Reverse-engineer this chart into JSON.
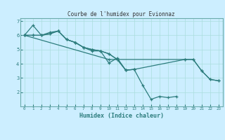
{
  "title": "Courbe de l'humidex pour Evionnaz",
  "xlabel": "Humidex (Indice chaleur)",
  "bg_color": "#cceeff",
  "line_color": "#2d7d7d",
  "grid_color": "#aadddd",
  "spine_color": "#6aabab",
  "xlim": [
    -0.5,
    23.5
  ],
  "ylim": [
    1.0,
    7.2
  ],
  "yticks": [
    2,
    3,
    4,
    5,
    6,
    7
  ],
  "xticks": [
    0,
    1,
    2,
    3,
    4,
    5,
    6,
    7,
    8,
    9,
    10,
    11,
    12,
    13,
    14,
    15,
    16,
    17,
    18,
    19,
    20,
    21,
    22,
    23
  ],
  "line1_x": [
    0,
    1,
    2,
    3,
    4,
    5,
    6,
    7,
    8,
    9,
    10,
    11,
    12,
    13,
    14,
    15,
    16,
    17,
    18
  ],
  "line1_y": [
    6.0,
    6.7,
    6.0,
    6.2,
    6.3,
    5.7,
    5.5,
    5.15,
    4.9,
    4.9,
    4.05,
    4.4,
    3.55,
    3.6,
    2.5,
    1.5,
    1.7,
    1.62,
    1.7
  ],
  "line2_x": [
    0,
    1,
    2,
    3,
    4,
    5,
    6,
    7,
    8,
    9,
    10,
    11,
    12,
    13
  ],
  "line2_y": [
    6.0,
    6.0,
    6.0,
    6.1,
    6.3,
    5.7,
    5.5,
    5.15,
    5.0,
    4.9,
    4.7,
    4.3,
    3.55,
    3.6
  ],
  "line3_x": [
    0,
    1,
    2,
    3,
    4,
    5,
    6,
    7,
    8,
    9,
    10,
    11,
    12,
    13,
    19,
    20,
    21,
    22,
    23
  ],
  "line3_y": [
    6.0,
    6.0,
    6.0,
    6.1,
    6.3,
    5.7,
    5.5,
    5.15,
    5.0,
    4.9,
    4.7,
    4.3,
    3.55,
    3.6,
    4.3,
    4.3,
    3.5,
    2.9,
    2.8
  ],
  "line4_x": [
    0,
    10,
    19,
    20,
    21,
    22,
    23
  ],
  "line4_y": [
    6.0,
    4.3,
    4.3,
    4.3,
    3.5,
    2.9,
    2.8
  ]
}
